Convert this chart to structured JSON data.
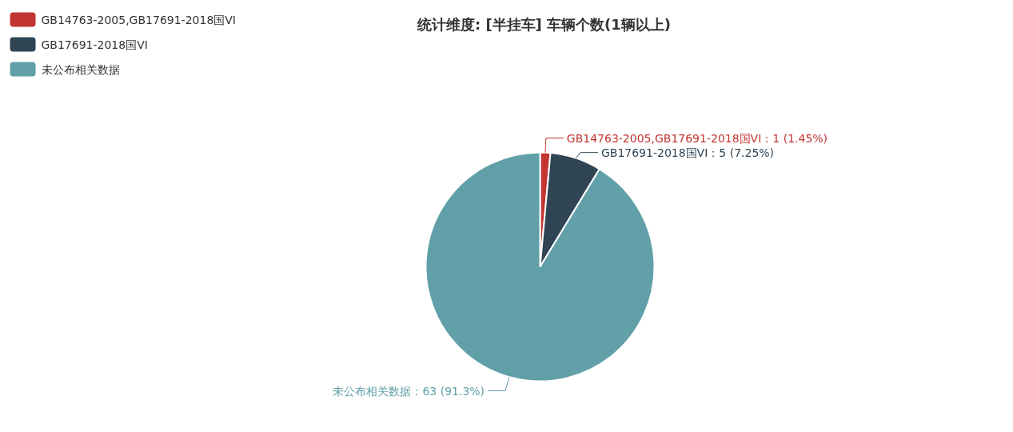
{
  "chart_data": {
    "type": "pie",
    "title": "统计维度: [半挂车] 车辆个数(1辆以上)",
    "categories": [
      "GB14763-2005,GB17691-2018国VI",
      "GB17691-2018国VI",
      "未公布相关数据"
    ],
    "values": [
      1,
      5,
      63
    ],
    "colors": [
      "#c23531",
      "#2f4554",
      "#61a0a8"
    ],
    "value_labels": [
      "GB14763-2005,GB17691-2018国VI：1 (1.45%)",
      "GB17691-2018国VI：5 (7.25%)",
      "未公布相关数据：63 (91.3%)"
    ],
    "legend": "top left"
  }
}
